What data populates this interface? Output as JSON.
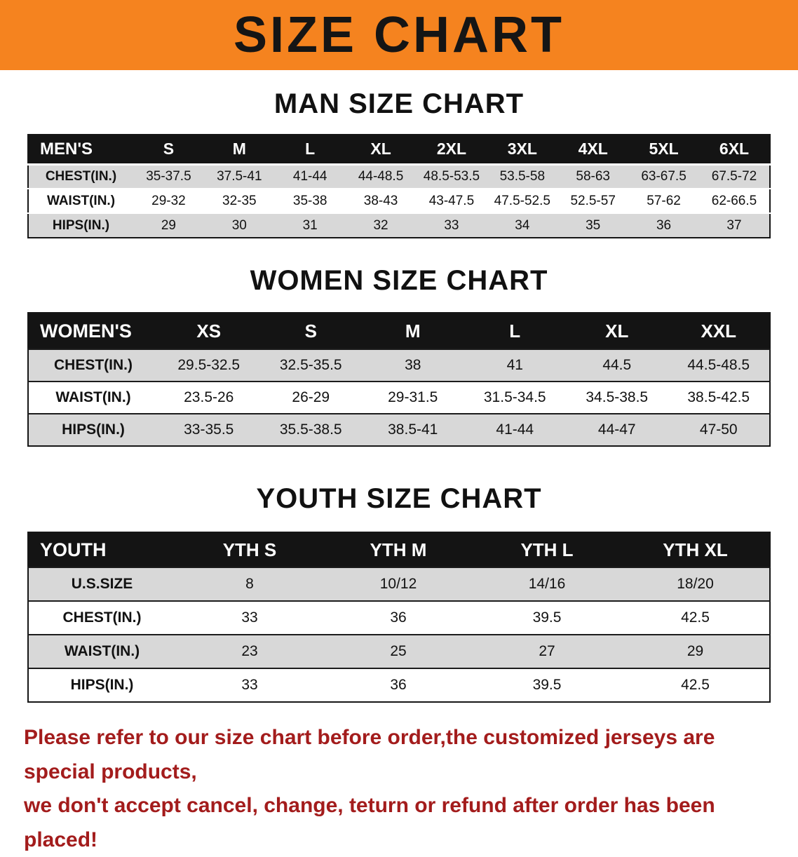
{
  "banner": {
    "title": "SIZE CHART"
  },
  "colors": {
    "banner_bg": "#f5831f",
    "table_header_bg": "#141414",
    "table_header_text": "#ffffff",
    "shaded_row_bg": "#d8d8d8",
    "footer_text": "#a31c1c"
  },
  "chart_data": [
    {
      "type": "table",
      "title": "MAN SIZE CHART",
      "columns": [
        "MEN'S",
        "S",
        "M",
        "L",
        "XL",
        "2XL",
        "3XL",
        "4XL",
        "5XL",
        "6XL"
      ],
      "rows": [
        [
          "CHEST(IN.)",
          "35-37.5",
          "37.5-41",
          "41-44",
          "44-48.5",
          "48.5-53.5",
          "53.5-58",
          "58-63",
          "63-67.5",
          "67.5-72"
        ],
        [
          "WAIST(IN.)",
          "29-32",
          "32-35",
          "35-38",
          "38-43",
          "43-47.5",
          "47.5-52.5",
          "52.5-57",
          "57-62",
          "62-66.5"
        ],
        [
          "HIPS(IN.)",
          "29",
          "30",
          "31",
          "32",
          "33",
          "34",
          "35",
          "36",
          "37"
        ]
      ]
    },
    {
      "type": "table",
      "title": "WOMEN SIZE CHART",
      "columns": [
        "WOMEN'S",
        "XS",
        "S",
        "M",
        "L",
        "XL",
        "XXL"
      ],
      "rows": [
        [
          "CHEST(IN.)",
          "29.5-32.5",
          "32.5-35.5",
          "38",
          "41",
          "44.5",
          "44.5-48.5"
        ],
        [
          "WAIST(IN.)",
          "23.5-26",
          "26-29",
          "29-31.5",
          "31.5-34.5",
          "34.5-38.5",
          "38.5-42.5"
        ],
        [
          "HIPS(IN.)",
          "33-35.5",
          "35.5-38.5",
          "38.5-41",
          "41-44",
          "44-47",
          "47-50"
        ]
      ]
    },
    {
      "type": "table",
      "title": "YOUTH SIZE CHART",
      "columns": [
        "YOUTH",
        "YTH S",
        "YTH M",
        "YTH L",
        "YTH XL"
      ],
      "rows": [
        [
          "U.S.SIZE",
          "8",
          "10/12",
          "14/16",
          "18/20"
        ],
        [
          "CHEST(IN.)",
          "33",
          "36",
          "39.5",
          "42.5"
        ],
        [
          "WAIST(IN.)",
          "23",
          "25",
          "27",
          "29"
        ],
        [
          "HIPS(IN.)",
          "33",
          "36",
          "39.5",
          "42.5"
        ]
      ]
    }
  ],
  "footer": {
    "line1": "Please refer to our size chart before order,the customized jerseys are special products,",
    "line2": "we don't accept cancel, change, teturn or refund after order has been placed!"
  }
}
